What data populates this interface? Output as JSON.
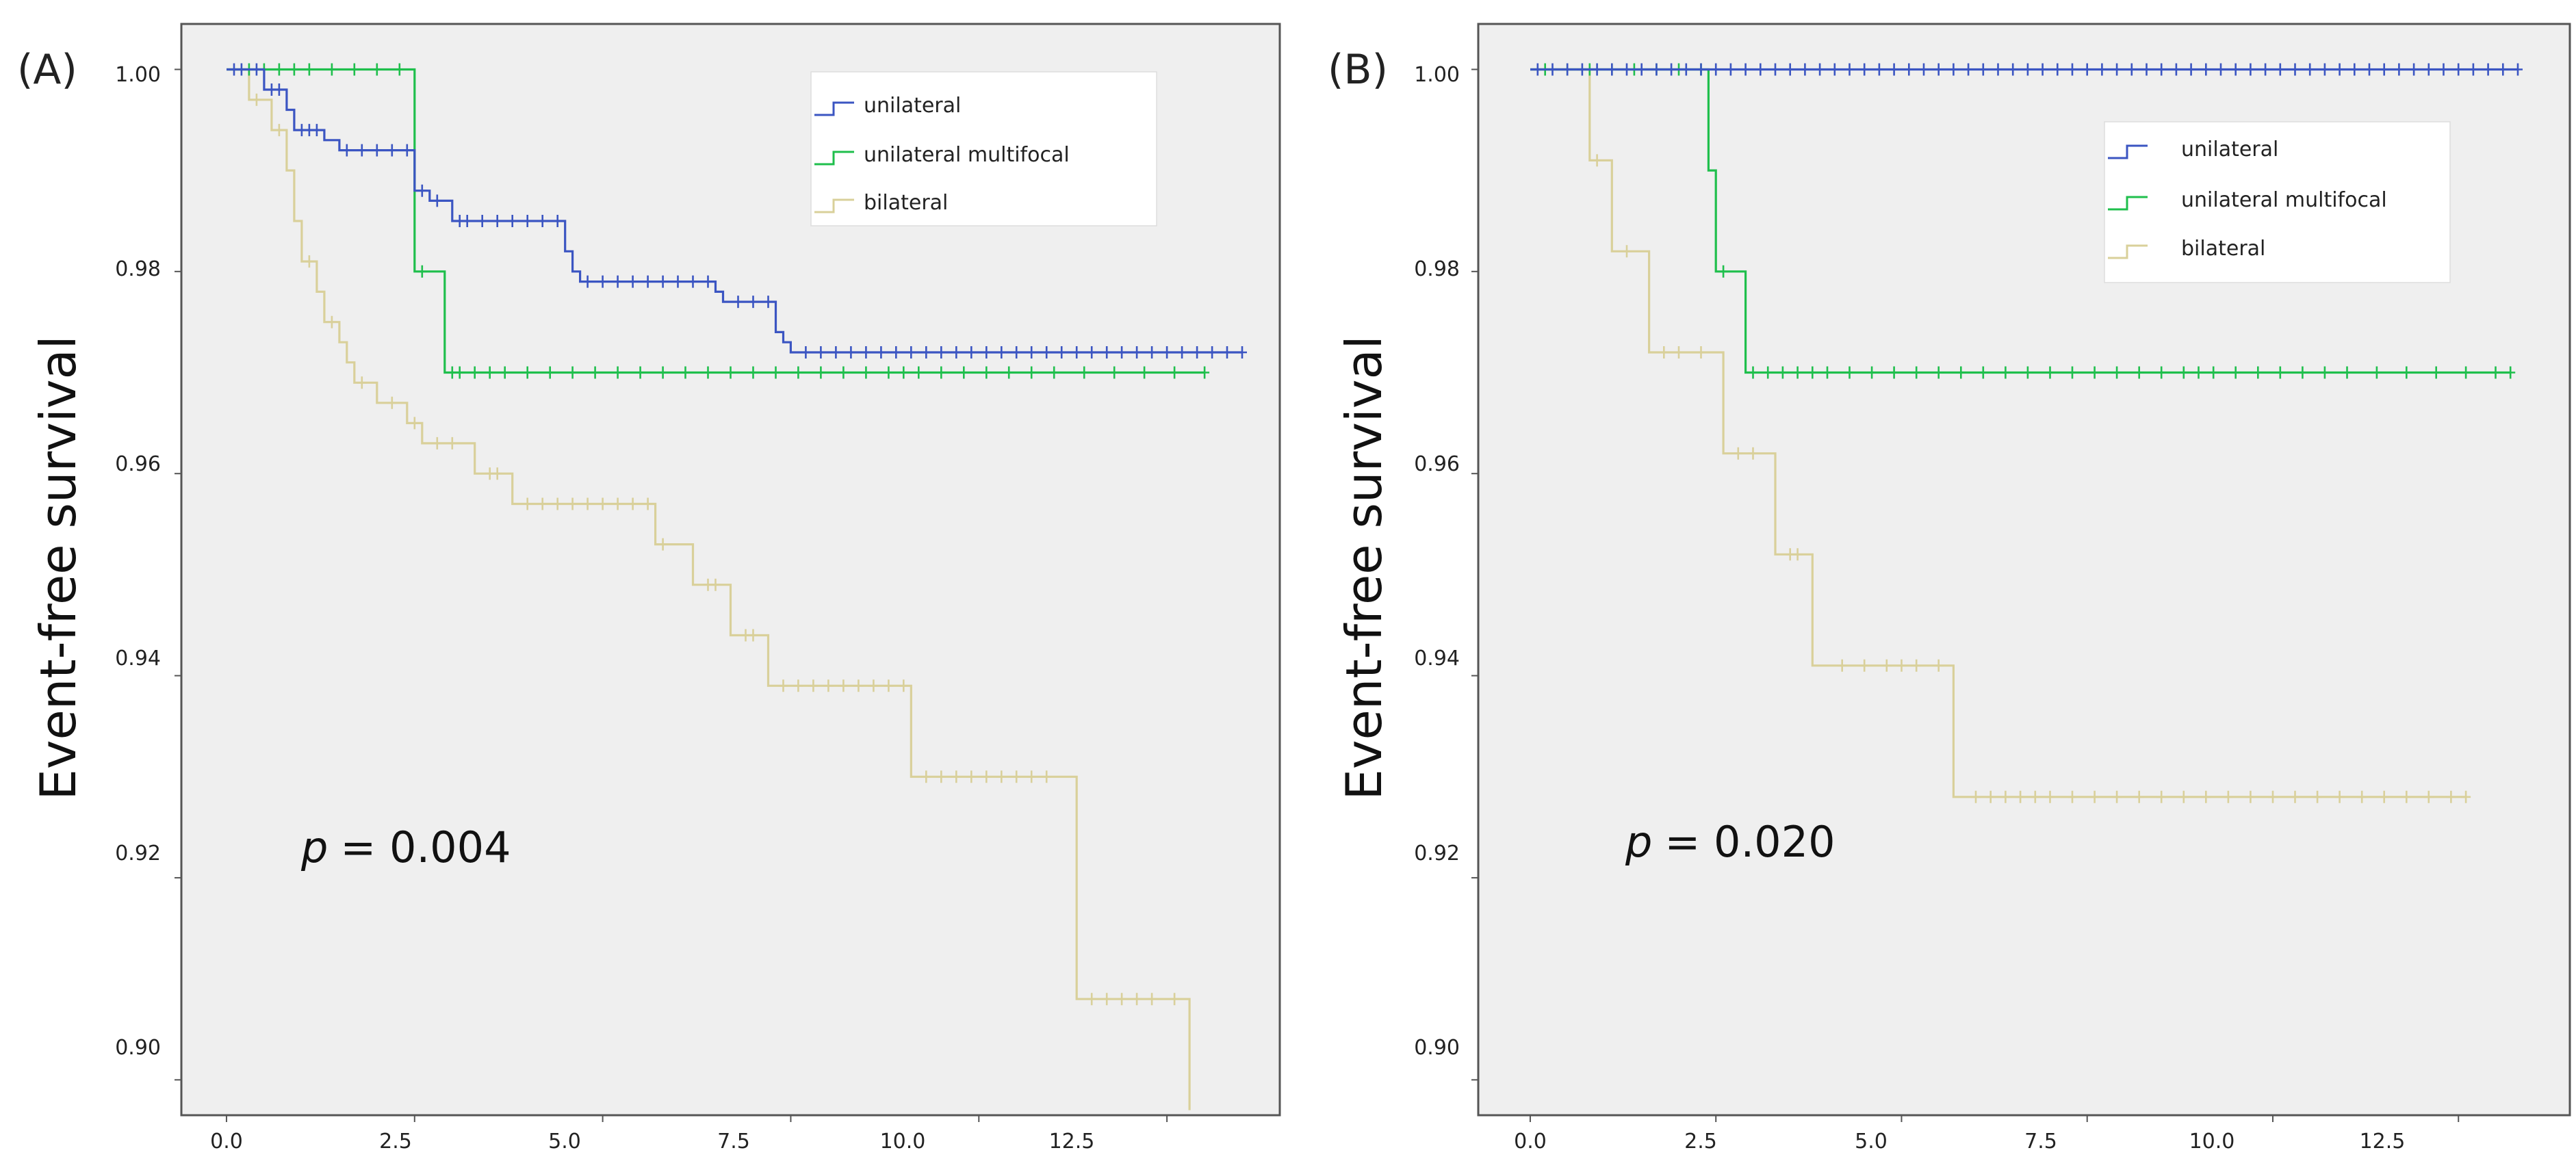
{
  "colors": {
    "unilateral": "#3B55C2",
    "multifocal": "#1FBF4C",
    "bilateral": "#D9D09A",
    "plot_bg": "#EFEFEF",
    "frame": "#555555"
  },
  "chart_data": [
    {
      "panel": "(A)",
      "type": "line",
      "ylabel": "Event-free survival",
      "xlim": [
        -0.6,
        14.0
      ],
      "ylim": [
        0.8965,
        1.0045
      ],
      "xticks": [
        "0.0",
        "2.5",
        "5.0",
        "7.5",
        "10.0",
        "12.5"
      ],
      "yticks": [
        "0.90",
        "0.92",
        "0.94",
        "0.96",
        "0.98",
        "1.00"
      ],
      "legend": {
        "position": "top-right",
        "entries": [
          "unilateral",
          "unilateral multifocal",
          "bilateral"
        ]
      },
      "annotation": {
        "p_symbol": "p",
        "p_text": "= 0.004"
      },
      "series": [
        {
          "name": "unilateral",
          "steps": [
            [
              0,
              1.0
            ],
            [
              0.5,
              0.998
            ],
            [
              0.8,
              0.996
            ],
            [
              0.9,
              0.994
            ],
            [
              1.3,
              0.993
            ],
            [
              1.5,
              0.992
            ],
            [
              2.5,
              0.988
            ],
            [
              2.7,
              0.987
            ],
            [
              3.0,
              0.985
            ],
            [
              4.5,
              0.982
            ],
            [
              4.6,
              0.98
            ],
            [
              4.7,
              0.979
            ],
            [
              6.5,
              0.978
            ],
            [
              6.6,
              0.977
            ],
            [
              7.3,
              0.974
            ],
            [
              7.4,
              0.973
            ],
            [
              7.5,
              0.972
            ]
          ],
          "end": 13.5,
          "censors": [
            0.1,
            0.2,
            0.4,
            0.6,
            0.7,
            1.0,
            1.1,
            1.2,
            1.6,
            1.8,
            2.0,
            2.2,
            2.4,
            2.6,
            2.8,
            3.1,
            3.2,
            3.4,
            3.6,
            3.8,
            4.0,
            4.2,
            4.4,
            4.8,
            5.0,
            5.2,
            5.4,
            5.6,
            5.8,
            6.0,
            6.2,
            6.4,
            6.8,
            7.0,
            7.2,
            7.7,
            7.9,
            8.1,
            8.3,
            8.5,
            8.7,
            8.9,
            9.1,
            9.3,
            9.5,
            9.7,
            9.9,
            10.1,
            10.3,
            10.5,
            10.7,
            10.9,
            11.1,
            11.3,
            11.5,
            11.7,
            11.9,
            12.1,
            12.3,
            12.5,
            12.7,
            12.9,
            13.1,
            13.3,
            13.5
          ]
        },
        {
          "name": "unilateral multifocal",
          "steps": [
            [
              0,
              1.0
            ],
            [
              2.5,
              0.98
            ],
            [
              2.9,
              0.97
            ]
          ],
          "end": 13.0,
          "censors": [
            0.3,
            0.5,
            0.7,
            0.9,
            1.1,
            1.4,
            1.7,
            2.0,
            2.3,
            2.6,
            3.0,
            3.1,
            3.3,
            3.5,
            3.7,
            4.0,
            4.3,
            4.6,
            4.9,
            5.2,
            5.5,
            5.8,
            6.1,
            6.4,
            6.7,
            7.0,
            7.3,
            7.6,
            7.9,
            8.2,
            8.5,
            8.8,
            9.0,
            9.2,
            9.5,
            9.8,
            10.1,
            10.4,
            10.7,
            11.0,
            11.4,
            11.8,
            12.2,
            12.6,
            13.0
          ]
        },
        {
          "name": "bilateral",
          "steps": [
            [
              0,
              1.0
            ],
            [
              0.3,
              0.997
            ],
            [
              0.6,
              0.994
            ],
            [
              0.8,
              0.99
            ],
            [
              0.9,
              0.985
            ],
            [
              1.0,
              0.981
            ],
            [
              1.2,
              0.978
            ],
            [
              1.3,
              0.975
            ],
            [
              1.5,
              0.973
            ],
            [
              1.6,
              0.971
            ],
            [
              1.7,
              0.969
            ],
            [
              2.0,
              0.967
            ],
            [
              2.4,
              0.965
            ],
            [
              2.6,
              0.963
            ],
            [
              3.3,
              0.96
            ],
            [
              3.8,
              0.957
            ],
            [
              5.7,
              0.953
            ],
            [
              6.2,
              0.949
            ],
            [
              6.7,
              0.944
            ],
            [
              7.2,
              0.939
            ],
            [
              9.1,
              0.93
            ],
            [
              11.3,
              0.908
            ],
            [
              12.8,
              0.897
            ]
          ],
          "end": 12.8,
          "censors": [
            0.4,
            0.7,
            1.1,
            1.4,
            1.8,
            2.2,
            2.5,
            2.8,
            3.0,
            3.5,
            3.6,
            4.0,
            4.2,
            4.4,
            4.6,
            4.8,
            5.0,
            5.2,
            5.4,
            5.6,
            5.8,
            6.4,
            6.5,
            6.9,
            7.0,
            7.4,
            7.6,
            7.8,
            8.0,
            8.2,
            8.4,
            8.6,
            8.8,
            9.0,
            9.3,
            9.5,
            9.7,
            9.9,
            10.1,
            10.3,
            10.5,
            10.7,
            10.9,
            11.5,
            11.7,
            11.9,
            12.1,
            12.3,
            12.6
          ]
        }
      ]
    },
    {
      "panel": "(B)",
      "type": "line",
      "ylabel": "Event-free survival",
      "xlim": [
        -0.7,
        14.0
      ],
      "ylim": [
        0.8965,
        1.0045
      ],
      "xticks": [
        "0.0",
        "2.5",
        "5.0",
        "7.5",
        "10.0",
        "12.5"
      ],
      "yticks": [
        "0.90",
        "0.92",
        "0.94",
        "0.96",
        "0.98",
        "1.00"
      ],
      "legend": {
        "position": "top-right",
        "entries": [
          "unilateral",
          "unilateral multifocal",
          "bilateral"
        ]
      },
      "annotation": {
        "p_symbol": "p",
        "p_text": "= 0.020"
      },
      "series": [
        {
          "name": "unilateral",
          "steps": [
            [
              0,
              1.0
            ]
          ],
          "end": 13.3,
          "censors": [
            0.1,
            0.3,
            0.5,
            0.7,
            0.9,
            1.1,
            1.3,
            1.5,
            1.7,
            1.9,
            2.1,
            2.3,
            2.5,
            2.7,
            2.9,
            3.1,
            3.3,
            3.5,
            3.7,
            3.9,
            4.1,
            4.3,
            4.5,
            4.7,
            4.9,
            5.1,
            5.3,
            5.5,
            5.7,
            5.9,
            6.1,
            6.3,
            6.5,
            6.7,
            6.9,
            7.1,
            7.3,
            7.5,
            7.7,
            7.9,
            8.1,
            8.3,
            8.5,
            8.7,
            8.9,
            9.1,
            9.3,
            9.5,
            9.7,
            9.9,
            10.1,
            10.3,
            10.5,
            10.7,
            10.9,
            11.1,
            11.3,
            11.5,
            11.7,
            11.9,
            12.1,
            12.3,
            12.5,
            12.7,
            12.9,
            13.1,
            13.3
          ]
        },
        {
          "name": "unilateral multifocal",
          "steps": [
            [
              0,
              1.0
            ],
            [
              2.4,
              0.99
            ],
            [
              2.5,
              0.98
            ],
            [
              2.9,
              0.97
            ]
          ],
          "end": 13.2,
          "censors": [
            0.2,
            0.5,
            0.8,
            1.1,
            1.4,
            1.7,
            2.0,
            2.3,
            2.6,
            3.0,
            3.2,
            3.4,
            3.6,
            3.8,
            4.0,
            4.3,
            4.6,
            4.9,
            5.2,
            5.5,
            5.8,
            6.1,
            6.4,
            6.7,
            7.0,
            7.3,
            7.6,
            7.9,
            8.2,
            8.5,
            8.8,
            9.0,
            9.2,
            9.5,
            9.8,
            10.1,
            10.4,
            10.7,
            11.0,
            11.4,
            11.8,
            12.2,
            12.6,
            13.0,
            13.2
          ]
        },
        {
          "name": "bilateral",
          "steps": [
            [
              0,
              1.0
            ],
            [
              0.8,
              0.991
            ],
            [
              1.1,
              0.982
            ],
            [
              1.6,
              0.972
            ],
            [
              2.6,
              0.962
            ],
            [
              3.3,
              0.952
            ],
            [
              3.8,
              0.941
            ],
            [
              5.7,
              0.928
            ]
          ],
          "end": 12.6,
          "censors": [
            0.2,
            0.5,
            0.9,
            1.3,
            1.8,
            2.0,
            2.3,
            2.8,
            3.0,
            3.5,
            3.6,
            4.2,
            4.5,
            4.8,
            5.0,
            5.2,
            5.5,
            6.0,
            6.2,
            6.4,
            6.6,
            6.8,
            7.0,
            7.3,
            7.6,
            7.9,
            8.2,
            8.5,
            8.8,
            9.1,
            9.4,
            9.7,
            10.0,
            10.3,
            10.6,
            10.9,
            11.2,
            11.5,
            11.8,
            12.1,
            12.4,
            12.6
          ]
        }
      ]
    }
  ]
}
